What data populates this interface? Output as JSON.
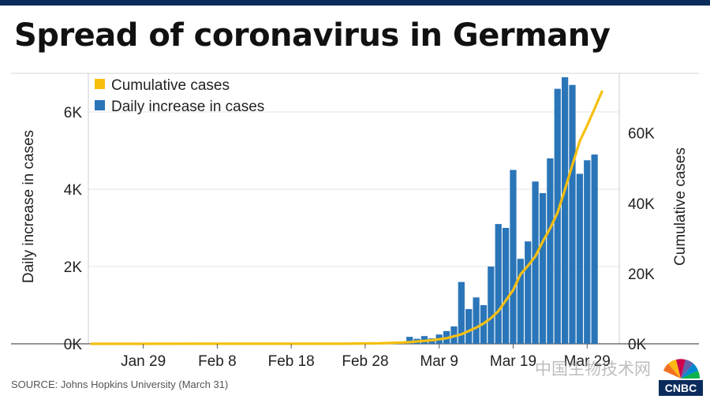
{
  "title": "Spread of coronavirus in Germany",
  "source": "SOURCE: Johns Hopkins University (March 31)",
  "watermark": "中国生物技术网",
  "logo_text": "CNBC",
  "colors": {
    "bar": "#2a75b8",
    "line": "#f6bf0f",
    "top_bar": "#0a2b5c",
    "grid": "#e3e3e3"
  },
  "chart_data": {
    "type": "bar",
    "title": "Spread of coronavirus in Germany",
    "xlabel": "",
    "ylabel": "Daily increase in cases",
    "y2label": "Cumulative cases",
    "ylim": [
      0,
      7000
    ],
    "y2lim": [
      0,
      77000
    ],
    "y_ticks": [
      "0K",
      "2K",
      "4K",
      "6K"
    ],
    "y_tick_values": [
      0,
      2000,
      4000,
      6000
    ],
    "y2_ticks": [
      "0K",
      "20K",
      "40K",
      "60K"
    ],
    "y2_tick_values": [
      0,
      20000,
      40000,
      60000
    ],
    "x_start": "Jan 22",
    "x_end": "Mar 31",
    "x_ticks": [
      "Jan 29",
      "Feb 8",
      "Feb 18",
      "Feb 28",
      "Mar 9",
      "Mar 19",
      "Mar 29"
    ],
    "x_tick_dates": [
      "Jan 29",
      "Feb 8",
      "Feb 18",
      "Feb 28",
      "Mar 9",
      "Mar 19",
      "Mar 29"
    ],
    "grid": true,
    "legend_position": "top-left",
    "series": [
      {
        "name": "Cumulative cases",
        "type": "line",
        "axis": "right",
        "x": [
          "Jan 22",
          "Jan 28",
          "Feb 4",
          "Feb 11",
          "Feb 18",
          "Feb 25",
          "Mar 1",
          "Mar 5",
          "Mar 8",
          "Mar 10",
          "Mar 12",
          "Mar 14",
          "Mar 15",
          "Mar 16",
          "Mar 17",
          "Mar 18",
          "Mar 19",
          "Mar 20",
          "Mar 21",
          "Mar 22",
          "Mar 23",
          "Mar 24",
          "Mar 25",
          "Mar 26",
          "Mar 27",
          "Mar 28",
          "Mar 29",
          "Mar 30",
          "Mar 31"
        ],
        "values": [
          0,
          4,
          12,
          16,
          16,
          18,
          130,
          480,
          1000,
          1600,
          2700,
          4600,
          5800,
          7300,
          9300,
          12300,
          15300,
          19800,
          22200,
          24900,
          29100,
          32900,
          37300,
          43900,
          50900,
          57700,
          62100,
          66900,
          71800
        ]
      },
      {
        "name": "Daily increase in cases",
        "type": "bar",
        "axis": "left",
        "x": [
          "Mar 5",
          "Mar 6",
          "Mar 7",
          "Mar 8",
          "Mar 9",
          "Mar 10",
          "Mar 11",
          "Mar 12",
          "Mar 13",
          "Mar 14",
          "Mar 15",
          "Mar 16",
          "Mar 17",
          "Mar 18",
          "Mar 19",
          "Mar 20",
          "Mar 21",
          "Mar 22",
          "Mar 23",
          "Mar 24",
          "Mar 25",
          "Mar 26",
          "Mar 27",
          "Mar 28",
          "Mar 29",
          "Mar 30",
          "Mar 31"
        ],
        "values": [
          180,
          130,
          200,
          140,
          240,
          330,
          450,
          1600,
          900,
          1200,
          1000,
          2000,
          3100,
          3000,
          4500,
          2200,
          2650,
          4200,
          3900,
          4800,
          6600,
          6900,
          6700,
          4400,
          4750,
          4900,
          0
        ]
      }
    ]
  }
}
